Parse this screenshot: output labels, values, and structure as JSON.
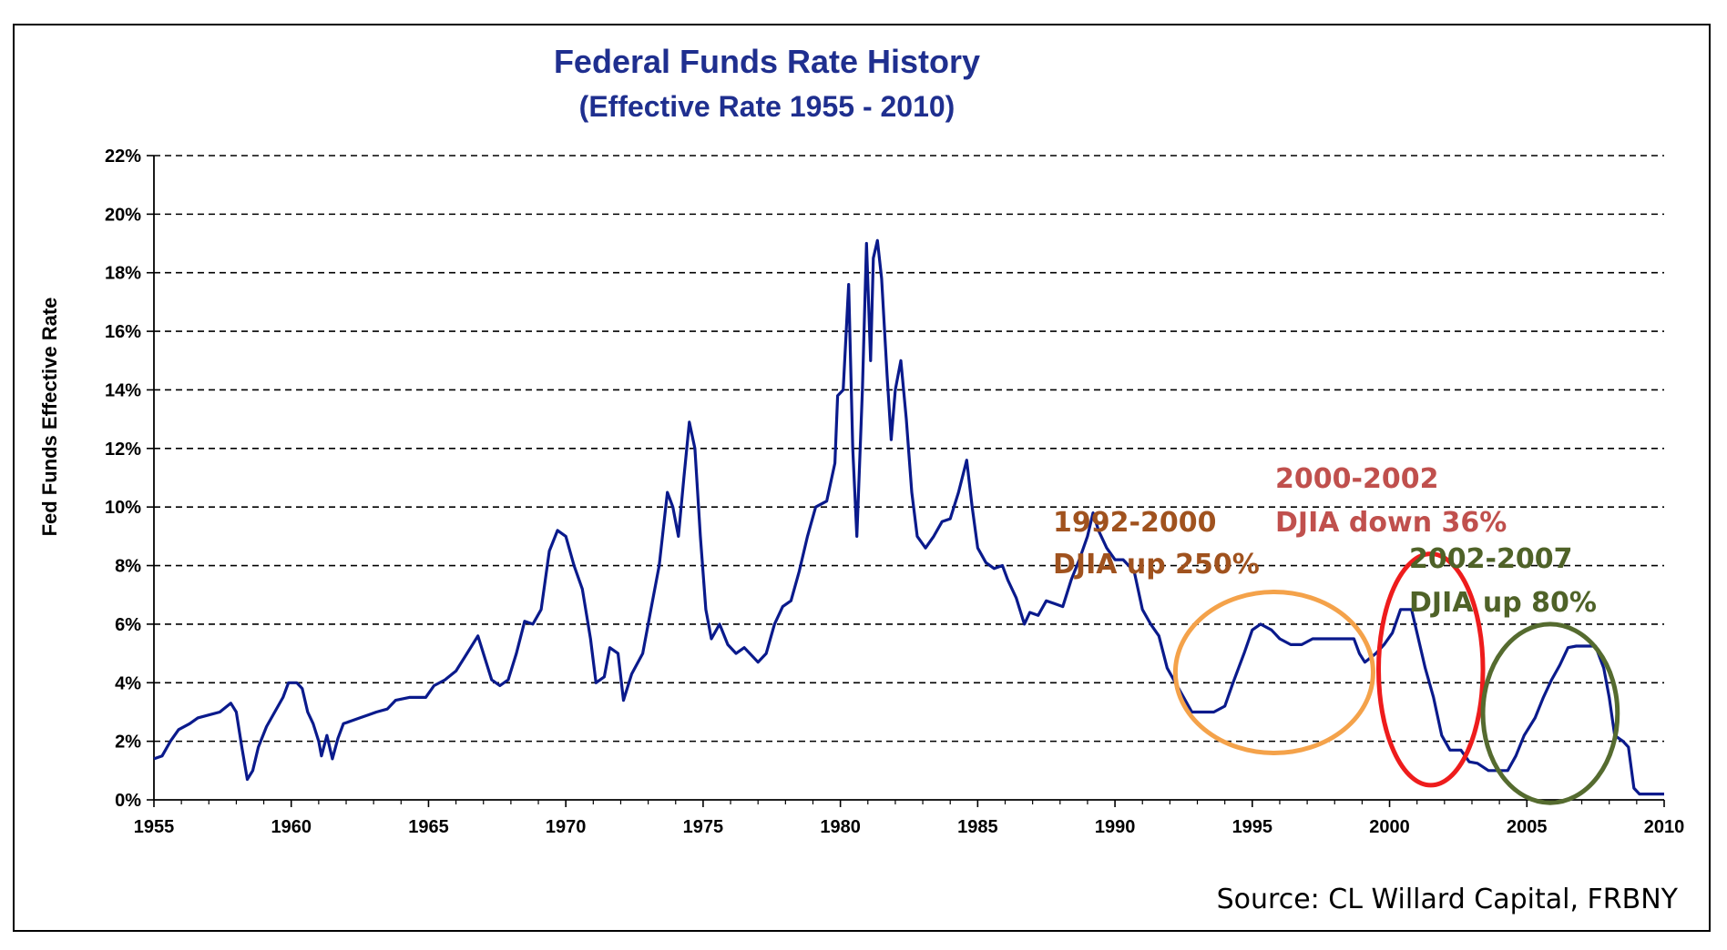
{
  "chart_data": {
    "type": "line",
    "title": "Federal Funds Rate History",
    "subtitle": "(Effective Rate 1955 - 2010)",
    "xlabel": "",
    "ylabel": "Fed Funds Effective Rate",
    "xlim": [
      1955,
      2010
    ],
    "ylim": [
      0,
      22
    ],
    "x_ticks": [
      "1955",
      "1960",
      "1965",
      "1970",
      "1975",
      "1980",
      "1985",
      "1990",
      "1995",
      "2000",
      "2005",
      "2010"
    ],
    "y_ticks": [
      "0%",
      "2%",
      "4%",
      "6%",
      "8%",
      "10%",
      "12%",
      "14%",
      "16%",
      "18%",
      "20%",
      "22%"
    ],
    "grid": "horizontal dashed",
    "series": [
      {
        "name": "Fed Funds Effective Rate",
        "color": "#0a1a8c",
        "points": [
          [
            1955.0,
            1.4
          ],
          [
            1955.3,
            1.5
          ],
          [
            1955.6,
            2.0
          ],
          [
            1955.9,
            2.4
          ],
          [
            1956.3,
            2.6
          ],
          [
            1956.6,
            2.8
          ],
          [
            1957.0,
            2.9
          ],
          [
            1957.4,
            3.0
          ],
          [
            1957.8,
            3.3
          ],
          [
            1958.0,
            3.0
          ],
          [
            1958.2,
            1.8
          ],
          [
            1958.4,
            0.7
          ],
          [
            1958.6,
            1.0
          ],
          [
            1958.8,
            1.8
          ],
          [
            1959.1,
            2.5
          ],
          [
            1959.4,
            3.0
          ],
          [
            1959.7,
            3.5
          ],
          [
            1959.9,
            4.0
          ],
          [
            1960.2,
            4.0
          ],
          [
            1960.4,
            3.8
          ],
          [
            1960.6,
            3.0
          ],
          [
            1960.8,
            2.6
          ],
          [
            1961.0,
            2.0
          ],
          [
            1961.1,
            1.5
          ],
          [
            1961.3,
            2.2
          ],
          [
            1961.5,
            1.4
          ],
          [
            1961.7,
            2.1
          ],
          [
            1961.9,
            2.6
          ],
          [
            1962.2,
            2.7
          ],
          [
            1962.5,
            2.8
          ],
          [
            1962.8,
            2.9
          ],
          [
            1963.1,
            3.0
          ],
          [
            1963.5,
            3.1
          ],
          [
            1963.8,
            3.4
          ],
          [
            1964.3,
            3.5
          ],
          [
            1964.9,
            3.5
          ],
          [
            1965.2,
            3.9
          ],
          [
            1965.6,
            4.1
          ],
          [
            1966.0,
            4.4
          ],
          [
            1966.4,
            5.0
          ],
          [
            1966.8,
            5.6
          ],
          [
            1967.0,
            5.0
          ],
          [
            1967.3,
            4.1
          ],
          [
            1967.6,
            3.9
          ],
          [
            1967.9,
            4.1
          ],
          [
            1968.2,
            5.0
          ],
          [
            1968.5,
            6.1
          ],
          [
            1968.8,
            6.0
          ],
          [
            1969.1,
            6.5
          ],
          [
            1969.4,
            8.5
          ],
          [
            1969.7,
            9.2
          ],
          [
            1970.0,
            9.0
          ],
          [
            1970.3,
            8.0
          ],
          [
            1970.6,
            7.2
          ],
          [
            1970.9,
            5.5
          ],
          [
            1971.1,
            4.0
          ],
          [
            1971.4,
            4.2
          ],
          [
            1971.6,
            5.2
          ],
          [
            1971.9,
            5.0
          ],
          [
            1972.1,
            3.4
          ],
          [
            1972.4,
            4.3
          ],
          [
            1972.8,
            5.0
          ],
          [
            1973.1,
            6.5
          ],
          [
            1973.4,
            8.0
          ],
          [
            1973.7,
            10.5
          ],
          [
            1973.9,
            10.0
          ],
          [
            1974.1,
            9.0
          ],
          [
            1974.3,
            11.0
          ],
          [
            1974.5,
            12.9
          ],
          [
            1974.7,
            12.0
          ],
          [
            1974.9,
            9.0
          ],
          [
            1975.1,
            6.5
          ],
          [
            1975.3,
            5.5
          ],
          [
            1975.6,
            6.0
          ],
          [
            1975.9,
            5.3
          ],
          [
            1976.2,
            5.0
          ],
          [
            1976.5,
            5.2
          ],
          [
            1976.8,
            4.9
          ],
          [
            1977.0,
            4.7
          ],
          [
            1977.3,
            5.0
          ],
          [
            1977.6,
            6.0
          ],
          [
            1977.9,
            6.6
          ],
          [
            1978.2,
            6.8
          ],
          [
            1978.5,
            7.8
          ],
          [
            1978.8,
            9.0
          ],
          [
            1979.1,
            10.0
          ],
          [
            1979.5,
            10.2
          ],
          [
            1979.8,
            11.5
          ],
          [
            1979.9,
            13.8
          ],
          [
            1980.1,
            14.0
          ],
          [
            1980.3,
            17.6
          ],
          [
            1980.45,
            12.0
          ],
          [
            1980.6,
            9.0
          ],
          [
            1980.8,
            14.0
          ],
          [
            1980.95,
            19.0
          ],
          [
            1981.1,
            15.0
          ],
          [
            1981.2,
            18.5
          ],
          [
            1981.35,
            19.1
          ],
          [
            1981.5,
            17.8
          ],
          [
            1981.7,
            14.5
          ],
          [
            1981.85,
            12.3
          ],
          [
            1982.0,
            14.0
          ],
          [
            1982.2,
            15.0
          ],
          [
            1982.4,
            13.0
          ],
          [
            1982.6,
            10.5
          ],
          [
            1982.8,
            9.0
          ],
          [
            1983.1,
            8.6
          ],
          [
            1983.4,
            9.0
          ],
          [
            1983.7,
            9.5
          ],
          [
            1984.0,
            9.6
          ],
          [
            1984.3,
            10.5
          ],
          [
            1984.6,
            11.6
          ],
          [
            1984.8,
            10.0
          ],
          [
            1985.0,
            8.6
          ],
          [
            1985.3,
            8.1
          ],
          [
            1985.6,
            7.9
          ],
          [
            1985.9,
            8.0
          ],
          [
            1986.1,
            7.5
          ],
          [
            1986.4,
            6.9
          ],
          [
            1986.7,
            6.0
          ],
          [
            1986.9,
            6.4
          ],
          [
            1987.2,
            6.3
          ],
          [
            1987.5,
            6.8
          ],
          [
            1987.8,
            6.7
          ],
          [
            1988.1,
            6.6
          ],
          [
            1988.4,
            7.5
          ],
          [
            1988.7,
            8.2
          ],
          [
            1989.0,
            9.0
          ],
          [
            1989.2,
            9.8
          ],
          [
            1989.4,
            9.2
          ],
          [
            1989.7,
            8.6
          ],
          [
            1990.0,
            8.2
          ],
          [
            1990.3,
            8.2
          ],
          [
            1990.7,
            7.8
          ],
          [
            1991.0,
            6.5
          ],
          [
            1991.3,
            6.0
          ],
          [
            1991.6,
            5.6
          ],
          [
            1991.9,
            4.5
          ],
          [
            1992.2,
            4.0
          ],
          [
            1992.5,
            3.5
          ],
          [
            1992.8,
            3.0
          ],
          [
            1993.2,
            3.0
          ],
          [
            1993.6,
            3.0
          ],
          [
            1994.0,
            3.2
          ],
          [
            1994.3,
            4.0
          ],
          [
            1994.7,
            5.0
          ],
          [
            1995.0,
            5.8
          ],
          [
            1995.3,
            6.0
          ],
          [
            1995.7,
            5.8
          ],
          [
            1996.0,
            5.5
          ],
          [
            1996.4,
            5.3
          ],
          [
            1996.8,
            5.3
          ],
          [
            1997.2,
            5.5
          ],
          [
            1997.6,
            5.5
          ],
          [
            1998.0,
            5.5
          ],
          [
            1998.4,
            5.5
          ],
          [
            1998.7,
            5.5
          ],
          [
            1998.9,
            5.0
          ],
          [
            1999.1,
            4.7
          ],
          [
            1999.5,
            5.0
          ],
          [
            1999.8,
            5.3
          ],
          [
            2000.1,
            5.7
          ],
          [
            2000.4,
            6.5
          ],
          [
            2000.8,
            6.5
          ],
          [
            2001.0,
            5.7
          ],
          [
            2001.3,
            4.5
          ],
          [
            2001.6,
            3.5
          ],
          [
            2001.9,
            2.2
          ],
          [
            2002.2,
            1.7
          ],
          [
            2002.6,
            1.7
          ],
          [
            2002.9,
            1.3
          ],
          [
            2003.2,
            1.25
          ],
          [
            2003.6,
            1.0
          ],
          [
            2003.9,
            1.0
          ],
          [
            2004.3,
            1.0
          ],
          [
            2004.6,
            1.5
          ],
          [
            2004.9,
            2.2
          ],
          [
            2005.3,
            2.8
          ],
          [
            2005.6,
            3.5
          ],
          [
            2005.9,
            4.1
          ],
          [
            2006.2,
            4.6
          ],
          [
            2006.5,
            5.2
          ],
          [
            2006.8,
            5.25
          ],
          [
            2007.2,
            5.25
          ],
          [
            2007.5,
            5.25
          ],
          [
            2007.8,
            4.5
          ],
          [
            2008.0,
            3.5
          ],
          [
            2008.2,
            2.2
          ],
          [
            2008.5,
            2.0
          ],
          [
            2008.7,
            1.8
          ],
          [
            2008.9,
            0.4
          ],
          [
            2009.1,
            0.2
          ],
          [
            2009.5,
            0.2
          ],
          [
            2010.0,
            0.2
          ]
        ]
      }
    ],
    "annotations": [
      {
        "line1": "1992-2000",
        "line2": "DJIA up 250%",
        "color": "#a0521e",
        "ellipse_color": "#f4a24a",
        "x_range": [
          1992.2,
          1999.4
        ],
        "y_range": [
          1.6,
          7.1
        ]
      },
      {
        "line1": "2000-2002",
        "line2": "DJIA down 36%",
        "color": "#c0504d",
        "ellipse_color": "#ee1c1c",
        "x_range": [
          1999.6,
          2003.4
        ],
        "y_range": [
          0.5,
          8.4
        ]
      },
      {
        "line1": "2002-2007",
        "line2": "DJIA up 80%",
        "color": "#4f6228",
        "ellipse_color": "#556b2f",
        "x_range": [
          2003.4,
          2008.3
        ],
        "y_range": [
          -0.1,
          6.0
        ]
      }
    ],
    "source": "Source: CL Willard Capital, FRBNY"
  }
}
